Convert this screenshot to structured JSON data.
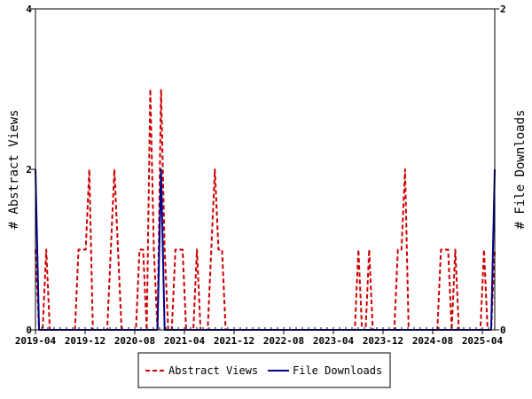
{
  "chart_data": {
    "type": "line",
    "title": "",
    "ylabel": "# Abstract Views",
    "y2label": "# File Downloads",
    "ylim": [
      0,
      4
    ],
    "y2lim": [
      0,
      2
    ],
    "yticks": [
      "0",
      "2",
      "4"
    ],
    "y2ticks": [
      "0",
      "2"
    ],
    "xticks": [
      "2019-04",
      "2019-12",
      "2020-08",
      "2021-04",
      "2021-12",
      "2022-08",
      "2023-04",
      "2023-12",
      "2024-08",
      "2025-04"
    ],
    "x_start": "2019-04",
    "x_end": "2025-06",
    "legend_position": "bottom",
    "grid": false,
    "series": [
      {
        "name": "Abstract Views",
        "axis": "left",
        "color": "#cc0000",
        "style": "dashed",
        "values": [
          1,
          0,
          0,
          1,
          0,
          0,
          0,
          0,
          0,
          0,
          0,
          0,
          1,
          1,
          1,
          2,
          0,
          0,
          0,
          0,
          0,
          1,
          2,
          1,
          0,
          0,
          0,
          0,
          0,
          1,
          1,
          0,
          3,
          1,
          0,
          3,
          1,
          0,
          0,
          1,
          1,
          1,
          0,
          0,
          0,
          1,
          0,
          0,
          0,
          1,
          2,
          1,
          1,
          0,
          0,
          0,
          0,
          0,
          0,
          0,
          0,
          0,
          0,
          0,
          0,
          0,
          0,
          0,
          0,
          0,
          0,
          0,
          0,
          0,
          0,
          0,
          0,
          0,
          0,
          0,
          0,
          0,
          0,
          0,
          0,
          0,
          0,
          0,
          0,
          0,
          1,
          0,
          0,
          1,
          0,
          0,
          0,
          0,
          0,
          0,
          0,
          1,
          1,
          2,
          0,
          0,
          0,
          0,
          0,
          0,
          0,
          0,
          0,
          1,
          1,
          1,
          0,
          1,
          0,
          0,
          0,
          0,
          0,
          0,
          0,
          1,
          0,
          0,
          1
        ]
      },
      {
        "name": "File Downloads",
        "axis": "right",
        "color": "#00008b",
        "style": "solid",
        "values": [
          1,
          0,
          0,
          0,
          0,
          0,
          0,
          0,
          0,
          0,
          0,
          0,
          0,
          0,
          0,
          0,
          0,
          0,
          0,
          0,
          0,
          0,
          0,
          0,
          0,
          0,
          0,
          0,
          0,
          0,
          0,
          0,
          0,
          0,
          0,
          1,
          0,
          0,
          0,
          0,
          0,
          0,
          0,
          0,
          0,
          0,
          0,
          0,
          0,
          0,
          0,
          0,
          0,
          0,
          0,
          0,
          0,
          0,
          0,
          0,
          0,
          0,
          0,
          0,
          0,
          0,
          0,
          0,
          0,
          0,
          0,
          0,
          0,
          0,
          0,
          0,
          0,
          0,
          0,
          0,
          0,
          0,
          0,
          0,
          0,
          0,
          0,
          0,
          0,
          0,
          0,
          0,
          0,
          0,
          0,
          0,
          0,
          0,
          0,
          0,
          0,
          0,
          0,
          0,
          0,
          0,
          0,
          0,
          0,
          0,
          0,
          0,
          0,
          0,
          0,
          0,
          0,
          0,
          0,
          0,
          0,
          0,
          0,
          0,
          0,
          0,
          0,
          0,
          1
        ]
      }
    ]
  }
}
